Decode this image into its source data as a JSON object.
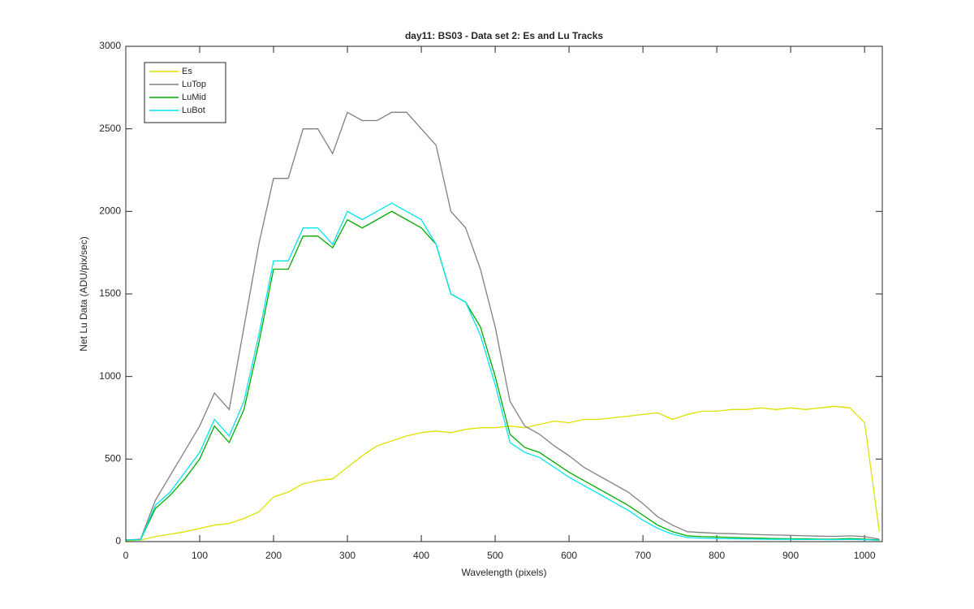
{
  "chart_data": {
    "type": "line",
    "title": "day11: BS03 - Data set 2: Es and Lu Tracks",
    "xlabel": "Wavelength (pixels)",
    "ylabel": "Net Lu Data (ADU/pix/sec)",
    "x": [
      0,
      20,
      40,
      60,
      80,
      100,
      120,
      140,
      160,
      180,
      200,
      220,
      240,
      260,
      280,
      300,
      320,
      340,
      360,
      380,
      400,
      420,
      440,
      460,
      480,
      500,
      520,
      540,
      560,
      580,
      600,
      620,
      640,
      660,
      680,
      700,
      720,
      740,
      760,
      780,
      800,
      820,
      840,
      860,
      880,
      900,
      920,
      940,
      960,
      980,
      1000,
      1020
    ],
    "series": [
      {
        "name": "Es",
        "color": "#e0e000",
        "values": [
          5,
          10,
          30,
          45,
          60,
          80,
          100,
          110,
          140,
          180,
          270,
          300,
          350,
          370,
          380,
          450,
          520,
          580,
          610,
          640,
          660,
          670,
          660,
          680,
          690,
          690,
          700,
          690,
          710,
          730,
          720,
          740,
          740,
          750,
          760,
          770,
          780,
          740,
          770,
          790,
          790,
          800,
          800,
          810,
          800,
          810,
          800,
          810,
          820,
          810,
          720,
          60
        ]
      },
      {
        "name": "LuTop",
        "color": "#808080",
        "values": [
          10,
          15,
          250,
          400,
          550,
          700,
          900,
          800,
          1300,
          1800,
          2200,
          2200,
          2500,
          2500,
          2350,
          2600,
          2550,
          2550,
          2600,
          2600,
          2500,
          2400,
          2000,
          1900,
          1650,
          1300,
          850,
          700,
          650,
          580,
          520,
          450,
          400,
          350,
          300,
          230,
          150,
          100,
          60,
          55,
          50,
          48,
          45,
          42,
          40,
          38,
          35,
          33,
          32,
          35,
          30,
          15
        ]
      },
      {
        "name": "LuMid",
        "color": "#00aa00",
        "values": [
          10,
          12,
          200,
          280,
          380,
          500,
          700,
          600,
          800,
          1200,
          1650,
          1650,
          1850,
          1850,
          1780,
          1950,
          1900,
          1950,
          2000,
          1950,
          1900,
          1800,
          1500,
          1450,
          1300,
          1000,
          650,
          570,
          540,
          480,
          420,
          370,
          320,
          270,
          220,
          160,
          100,
          60,
          35,
          30,
          28,
          25,
          22,
          20,
          18,
          17,
          16,
          15,
          15,
          18,
          15,
          10
        ]
      },
      {
        "name": "LuBot",
        "color": "#00e5ee",
        "values": [
          10,
          12,
          220,
          300,
          420,
          540,
          740,
          640,
          850,
          1250,
          1700,
          1700,
          1900,
          1900,
          1800,
          2000,
          1950,
          2000,
          2050,
          2000,
          1950,
          1800,
          1500,
          1450,
          1250,
          950,
          600,
          540,
          510,
          450,
          390,
          340,
          290,
          240,
          190,
          130,
          80,
          45,
          25,
          20,
          18,
          17,
          16,
          15,
          14,
          14,
          13,
          13,
          12,
          14,
          12,
          8
        ]
      }
    ],
    "xlim": [
      0,
      1024
    ],
    "xticks": [
      0,
      100,
      200,
      300,
      400,
      500,
      600,
      700,
      800,
      900,
      1000
    ],
    "ylim": [
      0,
      3000
    ],
    "yticks": [
      0,
      500,
      1000,
      1500,
      2000,
      2500,
      3000
    ],
    "legend": "upper left"
  }
}
